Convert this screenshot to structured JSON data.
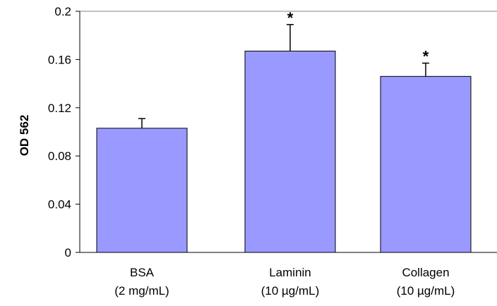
{
  "chart_data": {
    "type": "bar",
    "title": "",
    "xlabel": "",
    "ylabel": "OD 562",
    "ylim": [
      0,
      0.2
    ],
    "yticks": [
      "0",
      "0.04",
      "0.08",
      "0.12",
      "0.16",
      "0.2"
    ],
    "grid": false,
    "categories": [
      {
        "name": "BSA",
        "unit": "(2 mg/mL)"
      },
      {
        "name": "Laminin",
        "unit": "(10 µg/mL)"
      },
      {
        "name": "Collagen",
        "unit": "(10 µg/mL)"
      }
    ],
    "values": [
      0.103,
      0.167,
      0.146
    ],
    "error": [
      0.008,
      0.022,
      0.011
    ],
    "significance": [
      "",
      "*",
      "*"
    ],
    "colors": {
      "bar_fill": "#9999ff",
      "bar_stroke": "#000000",
      "axis": "#000000"
    }
  }
}
